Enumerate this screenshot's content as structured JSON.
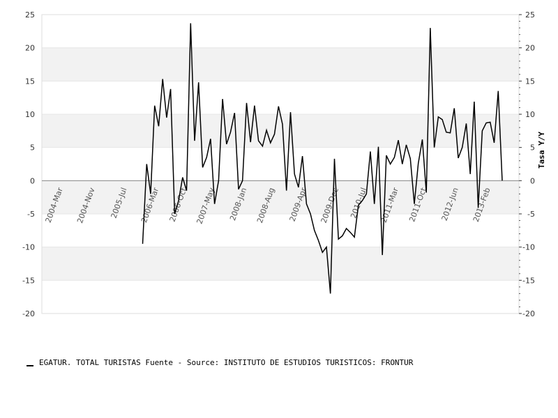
{
  "chart_data": {
    "type": "line",
    "ylabel": "Tasa Y/Y",
    "ylim": [
      -20,
      25
    ],
    "y_ticks": [
      "25",
      "20",
      "15",
      "10",
      "5",
      "0",
      "-5",
      "-10",
      "-15",
      "-20"
    ],
    "x_tick_labels": [
      "2004-Mar",
      "2004-Nov",
      "2005-Jul",
      "2006-Mar",
      "2006-Oct",
      "2007-May",
      "2008-Jan",
      "2008-Aug",
      "2009-Apr",
      "2009-Dec",
      "2010-Jul",
      "2011-Mar",
      "2011-Oct",
      "2012-Jun",
      "2013-Feb"
    ],
    "x_start": "2004-Mar",
    "grid": "alternating horizontal bands",
    "series": [
      {
        "name": "EGATUR. TOTAL TURISTAS",
        "color": "#000000",
        "values": [
          null,
          null,
          null,
          null,
          null,
          null,
          null,
          null,
          null,
          null,
          null,
          null,
          null,
          null,
          null,
          null,
          null,
          null,
          null,
          null,
          -9.5,
          2.5,
          -2.0,
          11.3,
          8.2,
          15.3,
          9.5,
          13.8,
          -5.0,
          -3.0,
          0.5,
          -1.5,
          23.7,
          6.0,
          14.8,
          2.0,
          3.5,
          6.3,
          -3.5,
          0.0,
          12.3,
          5.5,
          7.3,
          10.2,
          -1.3,
          0.0,
          11.7,
          5.8,
          11.3,
          6.0,
          5.2,
          7.6,
          5.7,
          7.0,
          11.2,
          8.5,
          -1.5,
          10.3,
          1.0,
          -1.0,
          3.7,
          -3.5,
          -5.0,
          -7.5,
          -9.0,
          -10.8,
          -10.0,
          -17.0,
          3.3,
          -8.8,
          -8.3,
          -7.2,
          -7.8,
          -8.5,
          -3.7,
          -3.0,
          -2.0,
          4.4,
          -3.5,
          5.1,
          -11.2,
          3.8,
          2.5,
          3.5,
          6.1,
          2.5,
          5.4,
          3.3,
          -3.5,
          2.6,
          6.2,
          -1.8,
          23.0,
          5.0,
          9.6,
          9.2,
          7.3,
          7.2,
          10.9,
          3.4,
          5.0,
          8.6,
          1.0,
          11.9,
          -4.1,
          7.5,
          8.7,
          8.8,
          5.7,
          13.5,
          0.0
        ]
      }
    ]
  },
  "legend": {
    "text": "EGATUR. TOTAL TURISTAS  Fuente - Source: INSTITUTO DE ESTUDIOS TURISTICOS: FRONTUR"
  }
}
